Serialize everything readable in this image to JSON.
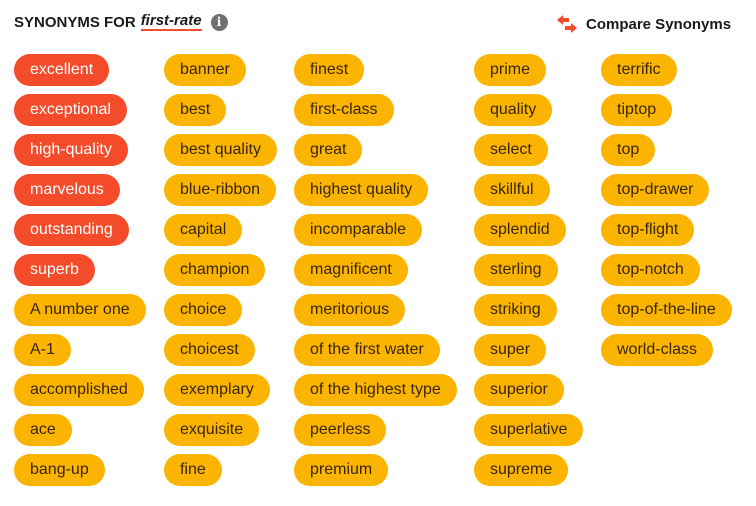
{
  "header": {
    "prefix": "SYNONYMS FOR",
    "word": "first-rate",
    "info_icon": "info-icon"
  },
  "compare": {
    "label": "Compare Synonyms",
    "icon": "swap-arrows-icon",
    "color": "#f44b2a"
  },
  "colors": {
    "strongest": "#f44b2a",
    "strong": "#fbb400"
  },
  "columns": [
    [
      {
        "t": "excellent",
        "s": 1
      },
      {
        "t": "exceptional",
        "s": 1
      },
      {
        "t": "high-quality",
        "s": 1
      },
      {
        "t": "marvelous",
        "s": 1
      },
      {
        "t": "outstanding",
        "s": 1
      },
      {
        "t": "superb",
        "s": 1
      },
      {
        "t": "A number one",
        "s": 0
      },
      {
        "t": "A-1",
        "s": 0
      },
      {
        "t": "accomplished",
        "s": 0
      },
      {
        "t": "ace",
        "s": 0
      },
      {
        "t": "bang-up",
        "s": 0
      }
    ],
    [
      {
        "t": "banner",
        "s": 0
      },
      {
        "t": "best",
        "s": 0
      },
      {
        "t": "best quality",
        "s": 0
      },
      {
        "t": "blue-ribbon",
        "s": 0
      },
      {
        "t": "capital",
        "s": 0
      },
      {
        "t": "champion",
        "s": 0
      },
      {
        "t": "choice",
        "s": 0
      },
      {
        "t": "choicest",
        "s": 0
      },
      {
        "t": "exemplary",
        "s": 0
      },
      {
        "t": "exquisite",
        "s": 0
      },
      {
        "t": "fine",
        "s": 0
      }
    ],
    [
      {
        "t": "finest",
        "s": 0
      },
      {
        "t": "first-class",
        "s": 0
      },
      {
        "t": "great",
        "s": 0
      },
      {
        "t": "highest quality",
        "s": 0
      },
      {
        "t": "incomparable",
        "s": 0
      },
      {
        "t": "magnificent",
        "s": 0
      },
      {
        "t": "meritorious",
        "s": 0
      },
      {
        "t": "of the first water",
        "s": 0
      },
      {
        "t": "of the highest type",
        "s": 0
      },
      {
        "t": "peerless",
        "s": 0
      },
      {
        "t": "premium",
        "s": 0
      }
    ],
    [
      {
        "t": "prime",
        "s": 0
      },
      {
        "t": "quality",
        "s": 0
      },
      {
        "t": "select",
        "s": 0
      },
      {
        "t": "skillful",
        "s": 0
      },
      {
        "t": "splendid",
        "s": 0
      },
      {
        "t": "sterling",
        "s": 0
      },
      {
        "t": "striking",
        "s": 0
      },
      {
        "t": "super",
        "s": 0
      },
      {
        "t": "superior",
        "s": 0
      },
      {
        "t": "superlative",
        "s": 0
      },
      {
        "t": "supreme",
        "s": 0
      }
    ],
    [
      {
        "t": "terrific",
        "s": 0
      },
      {
        "t": "tiptop",
        "s": 0
      },
      {
        "t": "top",
        "s": 0
      },
      {
        "t": "top-drawer",
        "s": 0
      },
      {
        "t": "top-flight",
        "s": 0
      },
      {
        "t": "top-notch",
        "s": 0
      },
      {
        "t": "top-of-the-line",
        "s": 0
      },
      {
        "t": "world-class",
        "s": 0
      }
    ]
  ]
}
